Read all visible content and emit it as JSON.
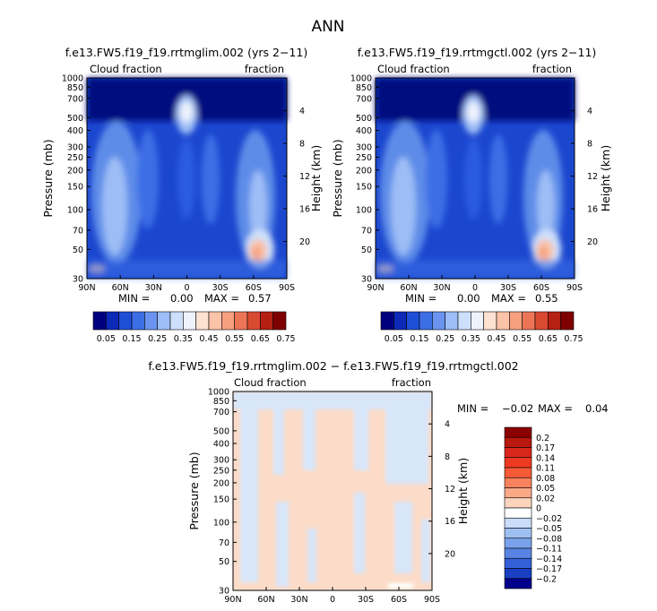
{
  "figure": {
    "title": "ANN"
  },
  "chart_data": [
    {
      "type": "heatmap",
      "title": "f.e13.FW5.f19_f19.rrtmglim.002 (yrs 2−11)",
      "variable": "Cloud fraction",
      "units": "fraction",
      "xlabel": "",
      "ylabel": "Pressure (mb)",
      "y2label": "Height (km)",
      "x_ticks": [
        "90N",
        "60N",
        "30N",
        "0",
        "30S",
        "60S",
        "90S"
      ],
      "y_ticks": [
        "1000",
        "850",
        "700",
        "500",
        "400",
        "300",
        "250",
        "200",
        "150",
        "100",
        "70",
        "50",
        "30"
      ],
      "y2_ticks": [
        "4",
        "8",
        "12",
        "16",
        "20"
      ],
      "min_label": "MIN =",
      "min": "0.00",
      "max_label": "MAX =",
      "max": "0.57",
      "colorbar_labels": [
        "0.05",
        "0.15",
        "0.25",
        "0.35",
        "0.45",
        "0.55",
        "0.65",
        "0.75"
      ],
      "colorbar_colors": [
        "#00007f",
        "#0c29b8",
        "#1f4fd8",
        "#3c6ee6",
        "#6a94ef",
        "#9dbdf6",
        "#cde0fb",
        "#eef3fb",
        "#fde2d2",
        "#fbc3a8",
        "#f6a07f",
        "#ec7556",
        "#d94a31",
        "#b52012",
        "#7f0000"
      ]
    },
    {
      "type": "heatmap",
      "title": "f.e13.FW5.f19_f19.rrtmgctl.002 (yrs 2−11)",
      "variable": "Cloud fraction",
      "units": "fraction",
      "xlabel": "",
      "ylabel": "Pressure (mb)",
      "y2label": "Height (km)",
      "x_ticks": [
        "90N",
        "60N",
        "30N",
        "0",
        "30S",
        "60S",
        "90S"
      ],
      "y_ticks": [
        "1000",
        "850",
        "700",
        "500",
        "400",
        "300",
        "250",
        "200",
        "150",
        "100",
        "70",
        "50",
        "30"
      ],
      "y2_ticks": [
        "4",
        "8",
        "12",
        "16",
        "20"
      ],
      "min_label": "MIN =",
      "min": "0.00",
      "max_label": "MAX =",
      "max": "0.55",
      "colorbar_labels": [
        "0.05",
        "0.15",
        "0.25",
        "0.35",
        "0.45",
        "0.55",
        "0.65",
        "0.75"
      ],
      "colorbar_colors": [
        "#00007f",
        "#0c29b8",
        "#1f4fd8",
        "#3c6ee6",
        "#6a94ef",
        "#9dbdf6",
        "#cde0fb",
        "#eef3fb",
        "#fde2d2",
        "#fbc3a8",
        "#f6a07f",
        "#ec7556",
        "#d94a31",
        "#b52012",
        "#7f0000"
      ]
    },
    {
      "type": "heatmap",
      "title": "f.e13.FW5.f19_f19.rrtmglim.002 − f.e13.FW5.f19_f19.rrtmgctl.002",
      "variable": "Cloud fraction",
      "units": "fraction",
      "xlabel": "",
      "ylabel": "Pressure (mb)",
      "y2label": "Height (km)",
      "x_ticks": [
        "90N",
        "60N",
        "30N",
        "0",
        "30S",
        "60S",
        "90S"
      ],
      "y_ticks": [
        "1000",
        "850",
        "700",
        "500",
        "400",
        "300",
        "250",
        "200",
        "150",
        "100",
        "70",
        "50",
        "30"
      ],
      "y2_ticks": [
        "4",
        "8",
        "12",
        "16",
        "20"
      ],
      "min_label": "MIN =",
      "min": "−0.02",
      "max_label": "MAX =",
      "max": "0.04",
      "colorbar_labels": [
        "0.2",
        "0.17",
        "0.14",
        "0.11",
        "0.08",
        "0.05",
        "0.02",
        "0",
        "−0.02",
        "−0.05",
        "−0.08",
        "−0.11",
        "−0.14",
        "−0.17",
        "−0.2"
      ],
      "colorbar_colors": [
        "#8b0000",
        "#b8180e",
        "#d9261c",
        "#ef3a22",
        "#f65a36",
        "#f9815c",
        "#fba987",
        "#fcd3bd",
        "#ffffff",
        "#c9dcfa",
        "#9fbff3",
        "#7aa2ec",
        "#5783e3",
        "#3360d7",
        "#1a3fc2",
        "#00008b"
      ]
    }
  ]
}
